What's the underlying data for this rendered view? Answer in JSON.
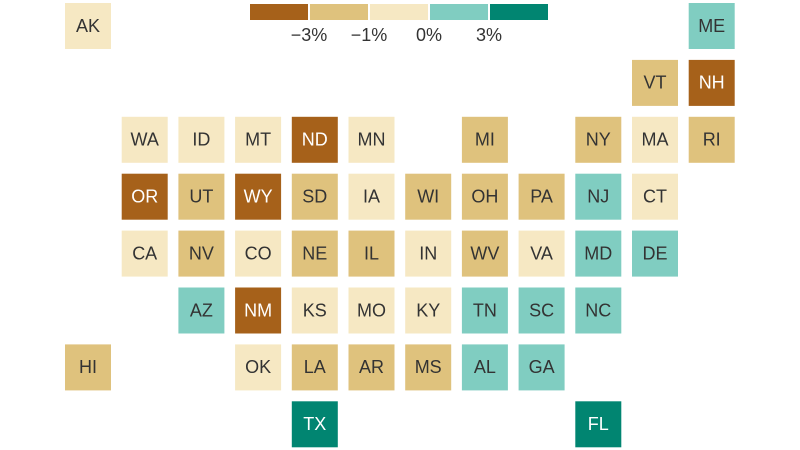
{
  "legend": {
    "colors": [
      "#a6611a",
      "#dfc27d",
      "#f6e8c3",
      "#80cdc1",
      "#018571"
    ],
    "ticks": [
      "−3%",
      "−1%",
      "0%",
      "3%"
    ]
  },
  "states": [
    {
      "label": "AK",
      "color": "#f6e8c3"
    },
    {
      "label": "ME",
      "color": "#80cdc1"
    },
    {
      "label": "VT",
      "color": "#dfc27d"
    },
    {
      "label": "NH",
      "color": "#a6611a"
    },
    {
      "label": "WA",
      "color": "#f6e8c3"
    },
    {
      "label": "ID",
      "color": "#f6e8c3"
    },
    {
      "label": "MT",
      "color": "#f6e8c3"
    },
    {
      "label": "ND",
      "color": "#a6611a"
    },
    {
      "label": "MN",
      "color": "#f6e8c3"
    },
    {
      "label": "MI",
      "color": "#dfc27d"
    },
    {
      "label": "NY",
      "color": "#dfc27d"
    },
    {
      "label": "MA",
      "color": "#f6e8c3"
    },
    {
      "label": "RI",
      "color": "#dfc27d"
    },
    {
      "label": "OR",
      "color": "#a6611a"
    },
    {
      "label": "UT",
      "color": "#dfc27d"
    },
    {
      "label": "WY",
      "color": "#a6611a"
    },
    {
      "label": "SD",
      "color": "#dfc27d"
    },
    {
      "label": "IA",
      "color": "#f6e8c3"
    },
    {
      "label": "WI",
      "color": "#dfc27d"
    },
    {
      "label": "OH",
      "color": "#dfc27d"
    },
    {
      "label": "PA",
      "color": "#dfc27d"
    },
    {
      "label": "NJ",
      "color": "#80cdc1"
    },
    {
      "label": "CT",
      "color": "#f6e8c3"
    },
    {
      "label": "CA",
      "color": "#f6e8c3"
    },
    {
      "label": "NV",
      "color": "#dfc27d"
    },
    {
      "label": "CO",
      "color": "#f6e8c3"
    },
    {
      "label": "NE",
      "color": "#dfc27d"
    },
    {
      "label": "IL",
      "color": "#dfc27d"
    },
    {
      "label": "IN",
      "color": "#f6e8c3"
    },
    {
      "label": "WV",
      "color": "#dfc27d"
    },
    {
      "label": "VA",
      "color": "#f6e8c3"
    },
    {
      "label": "MD",
      "color": "#80cdc1"
    },
    {
      "label": "DE",
      "color": "#80cdc1"
    },
    {
      "label": "AZ",
      "color": "#80cdc1"
    },
    {
      "label": "NM",
      "color": "#a6611a"
    },
    {
      "label": "KS",
      "color": "#f6e8c3"
    },
    {
      "label": "MO",
      "color": "#f6e8c3"
    },
    {
      "label": "KY",
      "color": "#f6e8c3"
    },
    {
      "label": "TN",
      "color": "#80cdc1"
    },
    {
      "label": "SC",
      "color": "#80cdc1"
    },
    {
      "label": "NC",
      "color": "#80cdc1"
    },
    {
      "label": "HI",
      "color": "#dfc27d"
    },
    {
      "label": "OK",
      "color": "#f6e8c3"
    },
    {
      "label": "LA",
      "color": "#dfc27d"
    },
    {
      "label": "AR",
      "color": "#dfc27d"
    },
    {
      "label": "MS",
      "color": "#dfc27d"
    },
    {
      "label": "AL",
      "color": "#80cdc1"
    },
    {
      "label": "GA",
      "color": "#80cdc1"
    },
    {
      "label": "TX",
      "color": "#018571"
    },
    {
      "label": "FL",
      "color": "#018571"
    }
  ]
}
